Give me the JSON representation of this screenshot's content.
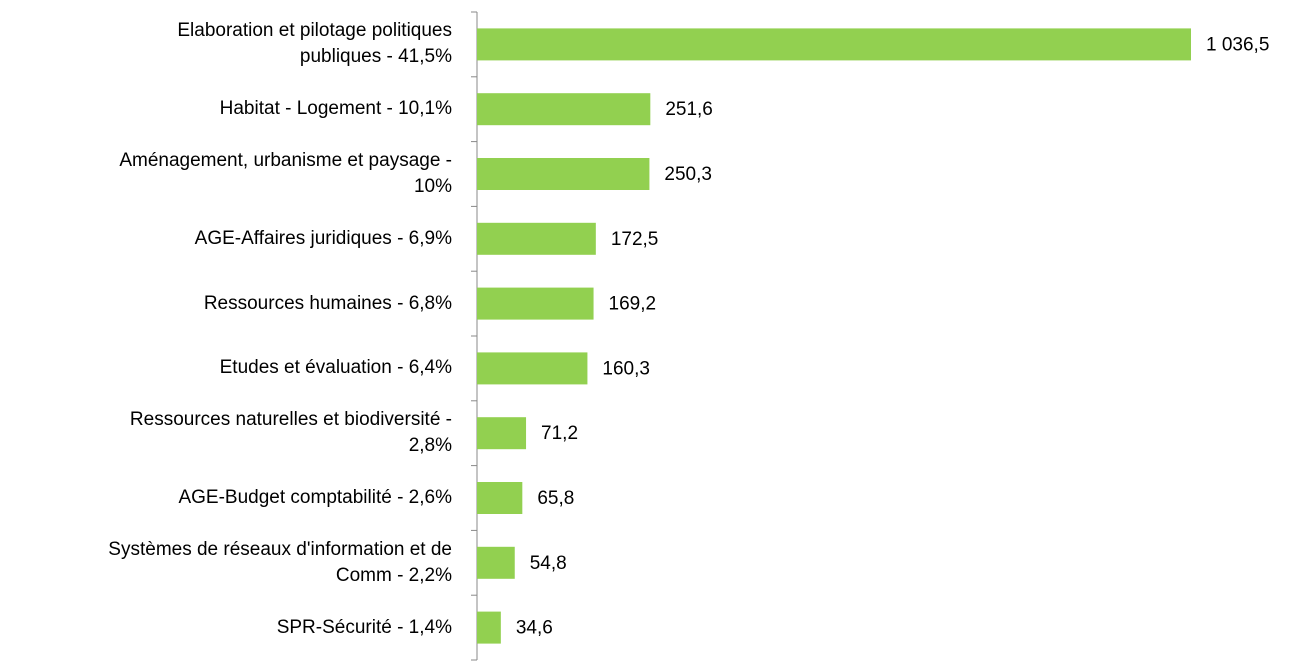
{
  "chart_data": {
    "type": "barh",
    "categories": [
      "Elaboration et pilotage politiques\npubliques - 41,5%",
      "Habitat - Logement - 10,1%",
      "Aménagement, urbanisme et paysage -\n10%",
      "AGE-Affaires juridiques - 6,9%",
      "Ressources humaines - 6,8%",
      "Etudes et évaluation - 6,4%",
      "Ressources naturelles et biodiversité -\n2,8%",
      "AGE-Budget comptabilité - 2,6%",
      "Systèmes de réseaux d'information et de\nComm - 2,2%",
      "SPR-Sécurité - 1,4%"
    ],
    "values": [
      1036.5,
      251.6,
      250.3,
      172.5,
      169.2,
      160.3,
      71.2,
      65.8,
      54.8,
      34.6
    ],
    "value_labels": [
      "1 036,5",
      "251,6",
      "250,3",
      "172,5",
      "169,2",
      "160,3",
      "71,2",
      "65,8",
      "54,8",
      "34,6"
    ],
    "color": "#92d050"
  }
}
